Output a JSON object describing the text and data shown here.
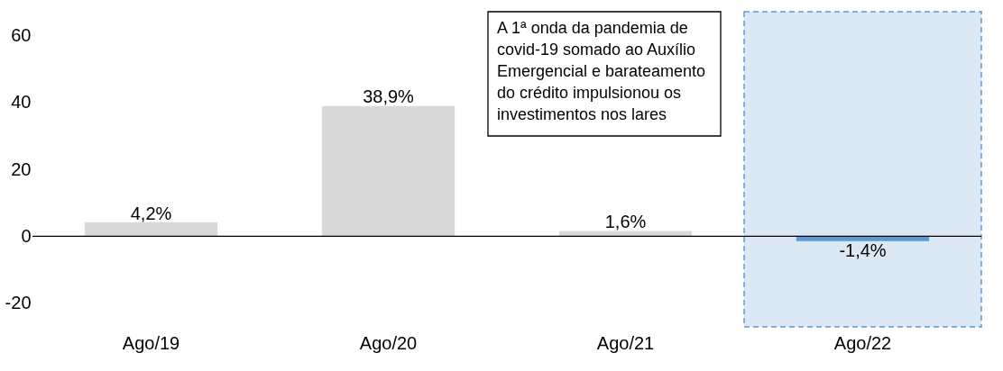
{
  "chart_data": {
    "type": "bar",
    "categories": [
      "Ago/19",
      "Ago/20",
      "Ago/21",
      "Ago/22"
    ],
    "values": [
      4.2,
      38.9,
      1.6,
      -1.4
    ],
    "colors": [
      "#d9d9d9",
      "#d9d9d9",
      "#d9d9d9",
      "#5b9bd5"
    ],
    "value_labels": [
      "4,2%",
      "38,9%",
      "1,6%",
      "-1,4%"
    ],
    "ylim": [
      -27,
      67
    ],
    "yticks": [
      -20,
      0,
      20,
      40,
      60
    ],
    "bands": [
      {
        "axis": "x",
        "from": "Ago/22",
        "to": "Ago/22",
        "color": "#dde8f5"
      }
    ],
    "annotations": [
      "A 1ª onda da pandemia de\ncovid-19 somado ao Auxílio\nEmergencial e barateamento\ndo crédito impulsionou os\ninvestimentos nos lares"
    ]
  }
}
